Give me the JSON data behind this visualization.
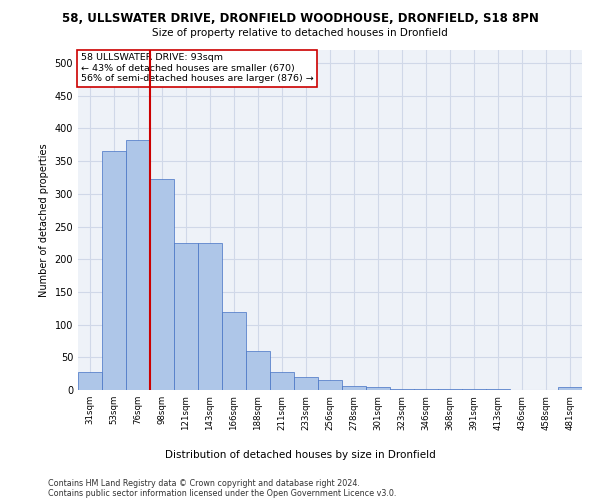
{
  "title_line1": "58, ULLSWATER DRIVE, DRONFIELD WOODHOUSE, DRONFIELD, S18 8PN",
  "title_line2": "Size of property relative to detached houses in Dronfield",
  "xlabel": "Distribution of detached houses by size in Dronfield",
  "ylabel": "Number of detached properties",
  "categories": [
    "31sqm",
    "53sqm",
    "76sqm",
    "98sqm",
    "121sqm",
    "143sqm",
    "166sqm",
    "188sqm",
    "211sqm",
    "233sqm",
    "256sqm",
    "278sqm",
    "301sqm",
    "323sqm",
    "346sqm",
    "368sqm",
    "391sqm",
    "413sqm",
    "436sqm",
    "458sqm",
    "481sqm"
  ],
  "values": [
    28,
    365,
    383,
    323,
    225,
    225,
    120,
    59,
    28,
    20,
    15,
    6,
    4,
    2,
    2,
    1,
    1,
    1,
    0,
    0,
    5
  ],
  "bar_color": "#aec6e8",
  "bar_edge_color": "#4472c4",
  "grid_color": "#d0d8e8",
  "background_color": "#eef2f8",
  "vline_color": "#cc0000",
  "annotation_text": "58 ULLSWATER DRIVE: 93sqm\n← 43% of detached houses are smaller (670)\n56% of semi-detached houses are larger (876) →",
  "annotation_box_color": "#ffffff",
  "annotation_box_edge": "#cc0000",
  "ylim": [
    0,
    520
  ],
  "yticks": [
    0,
    50,
    100,
    150,
    200,
    250,
    300,
    350,
    400,
    450,
    500
  ],
  "footnote1": "Contains HM Land Registry data © Crown copyright and database right 2024.",
  "footnote2": "Contains public sector information licensed under the Open Government Licence v3.0."
}
